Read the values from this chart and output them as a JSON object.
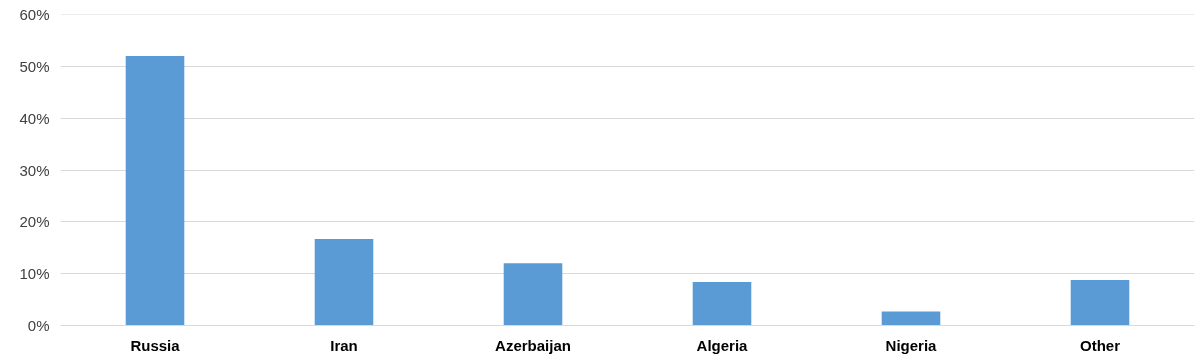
{
  "chart_data": {
    "type": "bar",
    "categories": [
      "Russia",
      "Iran",
      "Azerbaijan",
      "Algeria",
      "Nigeria",
      "Other"
    ],
    "values": [
      52,
      16.7,
      12,
      8.4,
      2.7,
      8.8
    ],
    "color": "#5b9bd5",
    "ylim": [
      0,
      60
    ],
    "yticks": [
      {
        "value": 0,
        "label": "0%"
      },
      {
        "value": 10,
        "label": "10%"
      },
      {
        "value": 20,
        "label": "20%"
      },
      {
        "value": 30,
        "label": "30%"
      },
      {
        "value": 40,
        "label": "40%"
      },
      {
        "value": 50,
        "label": "50%"
      },
      {
        "value": 60,
        "label": "60%"
      }
    ],
    "grid": "y"
  }
}
